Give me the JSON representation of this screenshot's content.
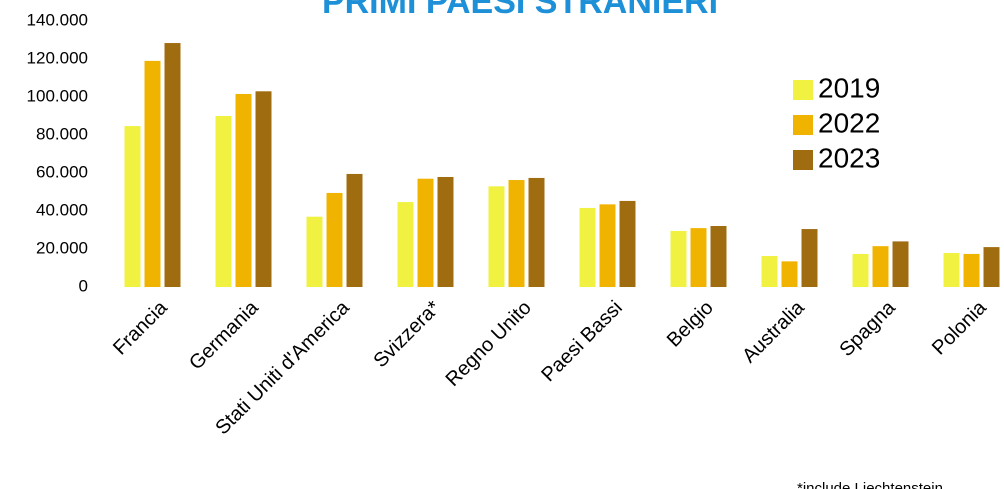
{
  "chart_data": {
    "type": "bar",
    "title": "PRIMI PAESI STRANIERI",
    "note": "*include Liechtenstein",
    "categories": [
      "Francia",
      "Germania",
      "Stati Uniti d'America",
      "Svizzera*",
      "Regno Unito",
      "Paesi Bassi",
      "Belgio",
      "Australia",
      "Spagna",
      "Polonia"
    ],
    "series": [
      {
        "name": "2019",
        "color": "#f1f142",
        "values": [
          84700,
          90000,
          37000,
          44700,
          53000,
          41600,
          29500,
          16300,
          17400,
          17900
        ]
      },
      {
        "name": "2022",
        "color": "#f0b400",
        "values": [
          119000,
          101600,
          49500,
          57000,
          56300,
          43500,
          31000,
          13500,
          21500,
          17400
        ]
      },
      {
        "name": "2023",
        "color": "#a06c10",
        "values": [
          128400,
          103000,
          59500,
          57900,
          57400,
          45300,
          32100,
          30500,
          24000,
          21000
        ]
      }
    ],
    "ylim": [
      0,
      140000
    ],
    "yticks": [
      0,
      {
        "value": 20000,
        "label": "20.000"
      },
      {
        "value": 40000,
        "label": "40.000"
      },
      {
        "value": 60000,
        "label": "60.000"
      },
      {
        "value": 80000,
        "label": "80.000"
      },
      {
        "value": 100000,
        "label": "100.000"
      },
      {
        "value": 120000,
        "label": "120.000"
      },
      {
        "value": 140000,
        "label": "140.000"
      }
    ],
    "grid": false,
    "legend": "right"
  }
}
